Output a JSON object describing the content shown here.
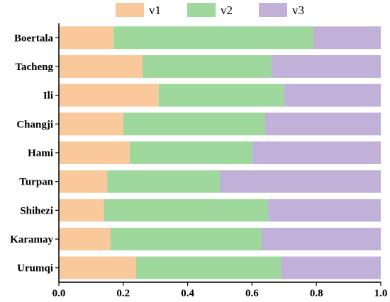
{
  "chart_data": {
    "type": "bar",
    "orientation": "horizontal",
    "stacked": true,
    "categories": [
      "Boertala",
      "Tacheng",
      "Ili",
      "Changji",
      "Hami",
      "Turpan",
      "Shihezi",
      "Karamay",
      "Urumqi"
    ],
    "series": [
      {
        "name": "v1",
        "color": "#f9c89b",
        "values": [
          0.17,
          0.26,
          0.31,
          0.2,
          0.22,
          0.15,
          0.14,
          0.16,
          0.24
        ]
      },
      {
        "name": "v2",
        "color": "#9ed89c",
        "values": [
          0.62,
          0.4,
          0.39,
          0.44,
          0.38,
          0.35,
          0.51,
          0.47,
          0.45
        ]
      },
      {
        "name": "v3",
        "color": "#c1b0d8",
        "values": [
          0.21,
          0.34,
          0.3,
          0.36,
          0.4,
          0.5,
          0.35,
          0.37,
          0.31
        ]
      }
    ],
    "xlim": [
      0,
      1
    ],
    "xticks": [
      "0.0",
      "0.2",
      "0.4",
      "0.6",
      "0.8",
      "1.0"
    ],
    "legend_position": "top-center",
    "grid": false
  }
}
